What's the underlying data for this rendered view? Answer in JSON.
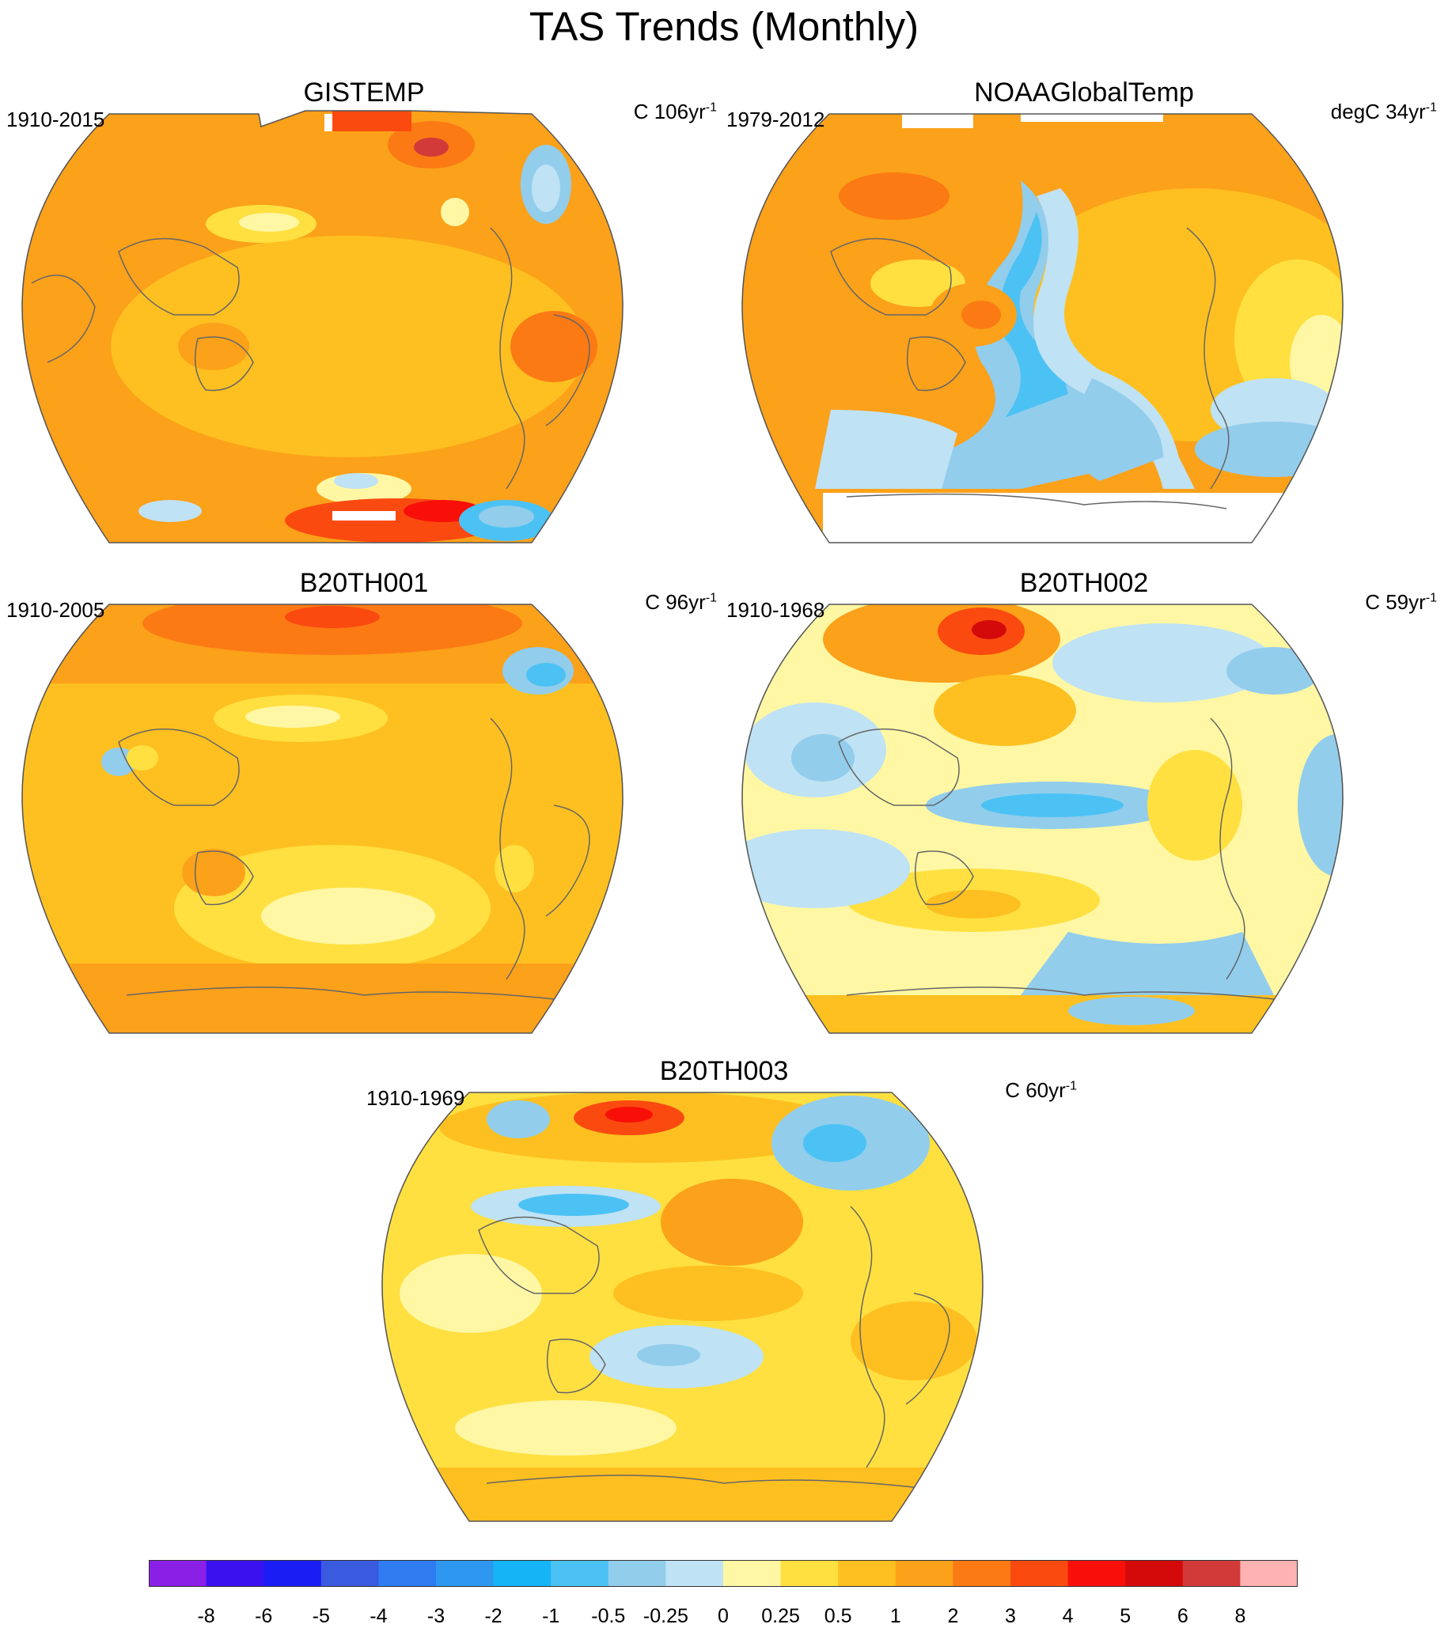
{
  "figure": {
    "title": "TAS Trends (Monthly)"
  },
  "panels": [
    {
      "id": "gistemp",
      "title": "GISTEMP",
      "period": "1910-2015",
      "units": "C 106yr",
      "units_sup": "-1",
      "dominant": "warm"
    },
    {
      "id": "noaa",
      "title": "NOAAGlobalTemp",
      "period": "1979-2012",
      "units": "degC 34yr",
      "units_sup": "-1",
      "dominant": "mixed"
    },
    {
      "id": "b20th001",
      "title": "B20TH001",
      "period": "1910-2005",
      "units": "C 96yr",
      "units_sup": "-1",
      "dominant": "warm"
    },
    {
      "id": "b20th002",
      "title": "B20TH002",
      "period": "1910-1968",
      "units": "C 59yr",
      "units_sup": "-1",
      "dominant": "mixed"
    },
    {
      "id": "b20th003",
      "title": "B20TH003",
      "period": "1910-1969",
      "units": "C 60yr",
      "units_sup": "-1",
      "dominant": "mixed-warm"
    }
  ],
  "colorbar": {
    "labels": [
      "-8",
      "-6",
      "-5",
      "-4",
      "-3",
      "-2",
      "-1",
      "-0.5",
      "-0.25",
      "0",
      "0.25",
      "0.5",
      "1",
      "2",
      "3",
      "4",
      "5",
      "6",
      "8"
    ],
    "colors": [
      "#8a1fe6",
      "#3a12f0",
      "#1a1ef5",
      "#3a5ae0",
      "#2e7cf0",
      "#2e98f0",
      "#14b4f6",
      "#4cc2f4",
      "#92cdec",
      "#bfe2f4",
      "#fff7a4",
      "#ffe040",
      "#fec020",
      "#fca11a",
      "#fb7a14",
      "#fa4a10",
      "#f81008",
      "#d40a0a",
      "#d23a3a",
      "#ffb2b2"
    ]
  }
}
